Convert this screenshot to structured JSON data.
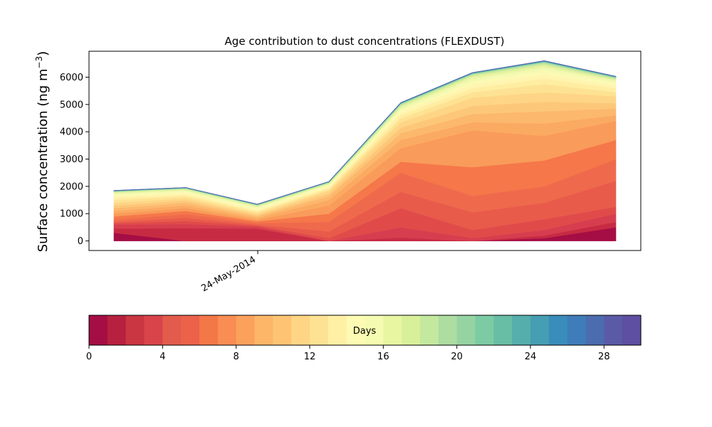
{
  "chart_data": {
    "type": "area",
    "title": "Age contribution to dust concentrations (FLEXDUST)",
    "ylabel_main": "Surface concentration (ng m",
    "ylabel_sup": "−3",
    "ylabel_close": ")",
    "xtick_label": "24-May-2014",
    "x_points": 8,
    "ylim": [
      -350,
      6950
    ],
    "yticks": [
      0,
      1000,
      2000,
      3000,
      4000,
      5000,
      6000
    ],
    "ytick_labels": [
      "0",
      "1000",
      "2000",
      "3000",
      "4000",
      "5000",
      "6000"
    ],
    "cumulative_boundaries": [
      [
        0,
        0,
        0,
        0,
        0,
        0,
        0,
        0
      ],
      [
        300,
        0,
        0,
        0,
        0,
        0,
        100,
        500
      ],
      [
        450,
        470,
        450,
        0,
        120,
        0,
        200,
        700
      ],
      [
        600,
        620,
        520,
        0,
        500,
        100,
        400,
        1000
      ],
      [
        650,
        730,
        560,
        100,
        1200,
        400,
        800,
        1250
      ],
      [
        700,
        850,
        600,
        350,
        1800,
        1050,
        1400,
        2200
      ],
      [
        780,
        980,
        650,
        700,
        2500,
        1650,
        2000,
        3000
      ],
      [
        900,
        1100,
        720,
        1000,
        2900,
        2700,
        2950,
        3700
      ],
      [
        1000,
        1200,
        780,
        1300,
        3400,
        4050,
        3850,
        4400
      ],
      [
        1100,
        1300,
        840,
        1500,
        3700,
        4350,
        4300,
        4600
      ],
      [
        1200,
        1400,
        900,
        1650,
        3950,
        4650,
        4750,
        4850
      ],
      [
        1300,
        1480,
        950,
        1750,
        4150,
        4950,
        5100,
        5050
      ],
      [
        1400,
        1560,
        1000,
        1850,
        4350,
        5250,
        5450,
        5300
      ],
      [
        1500,
        1640,
        1060,
        1900,
        4500,
        5450,
        5750,
        5450
      ],
      [
        1580,
        1700,
        1100,
        1950,
        4620,
        5600,
        5950,
        5600
      ],
      [
        1650,
        1760,
        1150,
        2000,
        4720,
        5750,
        6100,
        5700
      ],
      [
        1700,
        1810,
        1200,
        2050,
        4800,
        5850,
        6250,
        5800
      ],
      [
        1740,
        1850,
        1240,
        2080,
        4870,
        5950,
        6350,
        5860
      ],
      [
        1770,
        1880,
        1270,
        2100,
        4920,
        6020,
        6420,
        5900
      ],
      [
        1790,
        1900,
        1290,
        2120,
        4960,
        6060,
        6470,
        5930
      ],
      [
        1805,
        1915,
        1305,
        2135,
        4990,
        6090,
        6510,
        5955
      ],
      [
        1815,
        1925,
        1315,
        2145,
        5010,
        6110,
        6535,
        5975
      ],
      [
        1822,
        1932,
        1322,
        2152,
        5025,
        6125,
        6552,
        5990
      ],
      [
        1828,
        1938,
        1328,
        2158,
        5035,
        6135,
        6565,
        6000
      ],
      [
        1833,
        1943,
        1333,
        2163,
        5043,
        6143,
        6575,
        6007
      ],
      [
        1837,
        1947,
        1337,
        2167,
        5050,
        6150,
        6582,
        6013
      ],
      [
        1840,
        1950,
        1340,
        2170,
        5055,
        6155,
        6588,
        6018
      ],
      [
        1843,
        1953,
        1343,
        2173,
        5060,
        6160,
        6593,
        6022
      ],
      [
        1846,
        1956,
        1346,
        2176,
        5064,
        6164,
        6597,
        6026
      ],
      [
        1848,
        1958,
        1348,
        2178,
        5068,
        6168,
        6601,
        6029
      ],
      [
        1850,
        1960,
        1350,
        2180,
        5070,
        6170,
        6605,
        6032
      ]
    ],
    "colorbar": {
      "label": "Days",
      "range": [
        0,
        30
      ],
      "ticks": [
        0,
        4,
        8,
        12,
        16,
        20,
        24,
        28
      ],
      "tick_labels": [
        "0",
        "4",
        "8",
        "12",
        "16",
        "20",
        "24",
        "28"
      ],
      "colors": [
        "#a50d45",
        "#b8203f",
        "#ca3641",
        "#d9444a",
        "#e25b4b",
        "#eb614a",
        "#f37747",
        "#f98d53",
        "#fba15c",
        "#fdb668",
        "#fec474",
        "#fed585",
        "#fee293",
        "#fff0a5",
        "#fdfbb3",
        "#f5fbb0",
        "#e8f6a2",
        "#d9f09b",
        "#c4e89e",
        "#addda0",
        "#96d3a3",
        "#7ccba4",
        "#67bea5",
        "#55aeab",
        "#469eb3",
        "#3a8cbb",
        "#3f7dba",
        "#4c6cb0",
        "#5a5aa6",
        "#5e4fa2"
      ]
    },
    "series_colors": [
      "#a50d45",
      "#c72b43",
      "#d63e4f",
      "#e04b4a",
      "#e85b4b",
      "#ef6a4d",
      "#f5774a",
      "#f99b5a",
      "#fbaa62",
      "#fcb86d",
      "#fdc77a",
      "#fed586",
      "#fee294",
      "#ffeea2",
      "#fff5b0",
      "#fbfab5",
      "#f3f9b1",
      "#e9f5a4",
      "#dcf09c",
      "#cde9a0",
      "#b9e1a1",
      "#a1d7a4",
      "#88cfa4",
      "#72c3a6",
      "#5fb5a8",
      "#4ea5ae",
      "#4393b6",
      "#3f84bb",
      "#4672b4",
      "#5a5ea8"
    ]
  }
}
